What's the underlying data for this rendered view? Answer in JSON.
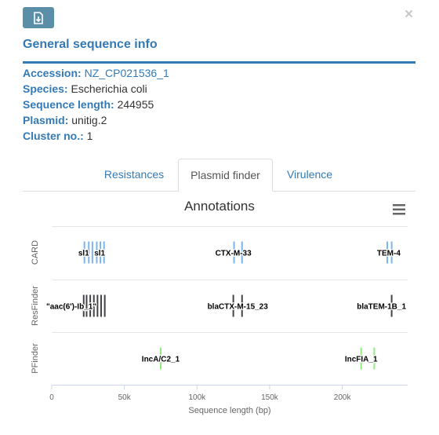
{
  "close_symbol": "×",
  "header": {
    "title": "General sequence info",
    "download_icon": "file-download-icon"
  },
  "info": {
    "accession_label": "Accession:",
    "accession_value": "NZ_CP021536_1",
    "species_label": "Species:",
    "species_value": "Escherichia coli",
    "length_label": "Sequence length:",
    "length_value": "244955",
    "plasmid_label": "Plasmid:",
    "plasmid_value": "unitig.2",
    "cluster_label": "Cluster no.:",
    "cluster_value": "1"
  },
  "tabs": [
    {
      "label": "Resistances",
      "active": false
    },
    {
      "label": "Plasmid finder",
      "active": true
    },
    {
      "label": "Virulence",
      "active": false
    }
  ],
  "chart_data": {
    "type": "scatter",
    "title": "Annotations",
    "xlabel": "Sequence length (bp)",
    "xlim": [
      0,
      245000
    ],
    "x_ticks": [
      "0",
      "50k",
      "100k",
      "150k",
      "200k"
    ],
    "x_tick_values": [
      0,
      50000,
      100000,
      150000,
      200000
    ],
    "menu_icon": "hamburger-menu-icon",
    "colors": {
      "CARD": "#7cb5ec",
      "ResFinder": "#434348",
      "PFinder": "#90ed7d"
    },
    "tracks": [
      {
        "name": "CARD",
        "markers": [
          22500,
          25500,
          28000,
          31000,
          33500,
          36000,
          125500,
          131000,
          231000,
          234000
        ],
        "labels": [
          {
            "text": "sl1",
            "x": 22000
          },
          {
            "text": "sl1",
            "x": 33000
          },
          {
            "text": "CTX-M-33",
            "x": 125000
          },
          {
            "text": "TEM-4",
            "x": 232000
          }
        ]
      },
      {
        "name": "ResFinder",
        "markers": [
          22000,
          24000,
          26500,
          29000,
          31500,
          34000,
          36500,
          125000,
          131000,
          234000
        ],
        "labels": [
          {
            "text": "\"aac(6')-Ib_1\"",
            "x": 13500
          },
          {
            "text": "blaCTX-M-15_23",
            "x": 128000
          },
          {
            "text": "blaTEM-1B_1",
            "x": 227000
          }
        ]
      },
      {
        "name": "PFinder",
        "markers": [
          75000,
          213000,
          222000
        ],
        "labels": [
          {
            "text": "IncA/C2_1",
            "x": 75000
          },
          {
            "text": "IncFIA_1",
            "x": 213000
          }
        ]
      }
    ]
  }
}
